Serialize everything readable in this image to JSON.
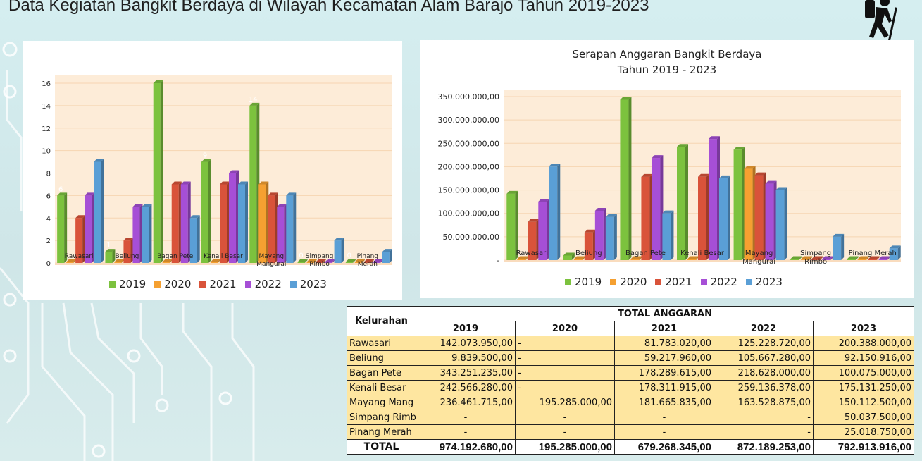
{
  "page_title": "Data Kegiatan Bangkit Berdaya di Wilayah Kecamatan Alam Barajo Tahun 2019-2023",
  "colors": {
    "2019": "#7cc23e",
    "2020": "#f5a031",
    "2021": "#d9533a",
    "2022": "#a64fd6",
    "2023": "#5a9fd6",
    "plot_bg": "#fdecd8"
  },
  "chart_data": [
    {
      "type": "bar",
      "title": "",
      "categories": [
        "Rawasari",
        "Beliung",
        "Bagan Pete",
        "Kenali Besar",
        "Mayang Mangurai",
        "Simpang Rimbo",
        "Pinang Merah"
      ],
      "category_lines": [
        [
          "Rawasari"
        ],
        [
          "Beliung"
        ],
        [
          "Bagan Pete"
        ],
        [
          "Kenali Besar"
        ],
        [
          "Mayang",
          "Mangurai"
        ],
        [
          "Simpang",
          "Rimbo"
        ],
        [
          "Pinang",
          "Merah"
        ]
      ],
      "series": [
        {
          "name": "2019",
          "values": [
            6,
            1,
            16,
            9,
            14,
            0,
            0
          ]
        },
        {
          "name": "2020",
          "values": [
            0,
            0,
            0,
            0,
            7,
            0,
            0
          ]
        },
        {
          "name": "2021",
          "values": [
            4,
            2,
            7,
            7,
            6,
            0,
            0
          ]
        },
        {
          "name": "2022",
          "values": [
            6,
            5,
            7,
            8,
            5,
            0,
            0
          ]
        },
        {
          "name": "2023",
          "values": [
            9,
            5,
            4,
            7,
            6,
            2,
            1
          ]
        }
      ],
      "data_labels_2019": [
        "6",
        "1",
        "",
        "9",
        "14",
        "0",
        "0"
      ],
      "yticks": [
        "0",
        "2",
        "4",
        "6",
        "8",
        "10",
        "12",
        "14",
        "16"
      ],
      "ylim": [
        0,
        16
      ],
      "legend": "bottom",
      "legend_labels": [
        "2019",
        "2020",
        "2021",
        "2022",
        "2023"
      ]
    },
    {
      "type": "bar",
      "title_line1": "Serapan Anggaran Bangkit Berdaya",
      "title_line2": "Tahun 2019 - 2023",
      "categories": [
        "Rawasari",
        "Beliung",
        "Bagan Pete",
        "Kenali Besar",
        "Mayang Mangurai",
        "Simpang Rimbo",
        "Pinang Merah"
      ],
      "category_lines": [
        [
          "Rawasari"
        ],
        [
          "Beliung"
        ],
        [
          "Bagan Pete"
        ],
        [
          "Kenali Besar"
        ],
        [
          "Mayang",
          "Mangurai"
        ],
        [
          "Simpang",
          "Rimbo"
        ],
        [
          "Pinang Merah"
        ]
      ],
      "series": [
        {
          "name": "2019",
          "values": [
            142073950,
            9839500,
            343251235,
            242566280,
            236461715,
            0,
            0
          ]
        },
        {
          "name": "2020",
          "values": [
            0,
            0,
            0,
            0,
            195285000,
            0,
            0
          ]
        },
        {
          "name": "2021",
          "values": [
            81783020,
            59217960,
            178289615,
            178311915,
            181665835,
            0,
            0
          ]
        },
        {
          "name": "2022",
          "values": [
            125228720,
            105667280,
            218628000,
            259136378,
            163528875,
            0,
            0
          ]
        },
        {
          "name": "2023",
          "values": [
            200388000,
            92150916,
            100075000,
            175131250,
            150112500,
            50037500,
            25018750
          ]
        }
      ],
      "yticks": [
        "-",
        "50.000.000,00",
        "100.000.000,00",
        "150.000.000,00",
        "200.000.000,00",
        "250.000.000,00",
        "300.000.000,00",
        "350.000.000,00"
      ],
      "ylim": [
        0,
        350000000
      ],
      "legend": "bottom",
      "legend_labels": [
        "2019",
        "2020",
        "2021",
        "2022",
        "2023"
      ]
    }
  ],
  "table": {
    "header_kelurahan": "Kelurahan",
    "header_total_anggaran": "TOTAL ANGGARAN",
    "years": [
      "2019",
      "2020",
      "2021",
      "2022",
      "2023"
    ],
    "rows": [
      {
        "label": "Rawasari",
        "cells": [
          "142.073.950,00",
          "-",
          "81.783.020,00",
          "125.228.720,00",
          "200.388.000,00"
        ]
      },
      {
        "label": "Beliung",
        "cells": [
          "9.839.500,00",
          "-",
          "59.217.960,00",
          "105.667.280,00",
          "92.150.916,00"
        ]
      },
      {
        "label": "Bagan Pete",
        "cells": [
          "343.251.235,00",
          "-",
          "178.289.615,00",
          "218.628.000,00",
          "100.075.000,00"
        ]
      },
      {
        "label": "Kenali Besar",
        "cells": [
          "242.566.280,00",
          "-",
          "178.311.915,00",
          "259.136.378,00",
          "175.131.250,00"
        ]
      },
      {
        "label": "Mayang Mang",
        "cells": [
          "236.461.715,00",
          "195.285.000,00",
          "181.665.835,00",
          "163.528.875,00",
          "150.112.500,00"
        ]
      },
      {
        "label": "Simpang Rimbo",
        "cells": [
          "-",
          "-",
          "-",
          "-",
          "50.037.500,00"
        ]
      },
      {
        "label": "Pinang Merah",
        "cells": [
          "-",
          "-",
          "-",
          "-",
          "25.018.750,00"
        ]
      }
    ],
    "total_label": "TOTAL",
    "totals": [
      "974.192.680,00",
      "195.285.000,00",
      "679.268.345,00",
      "872.189.253,00",
      "792.913.916,00"
    ]
  }
}
